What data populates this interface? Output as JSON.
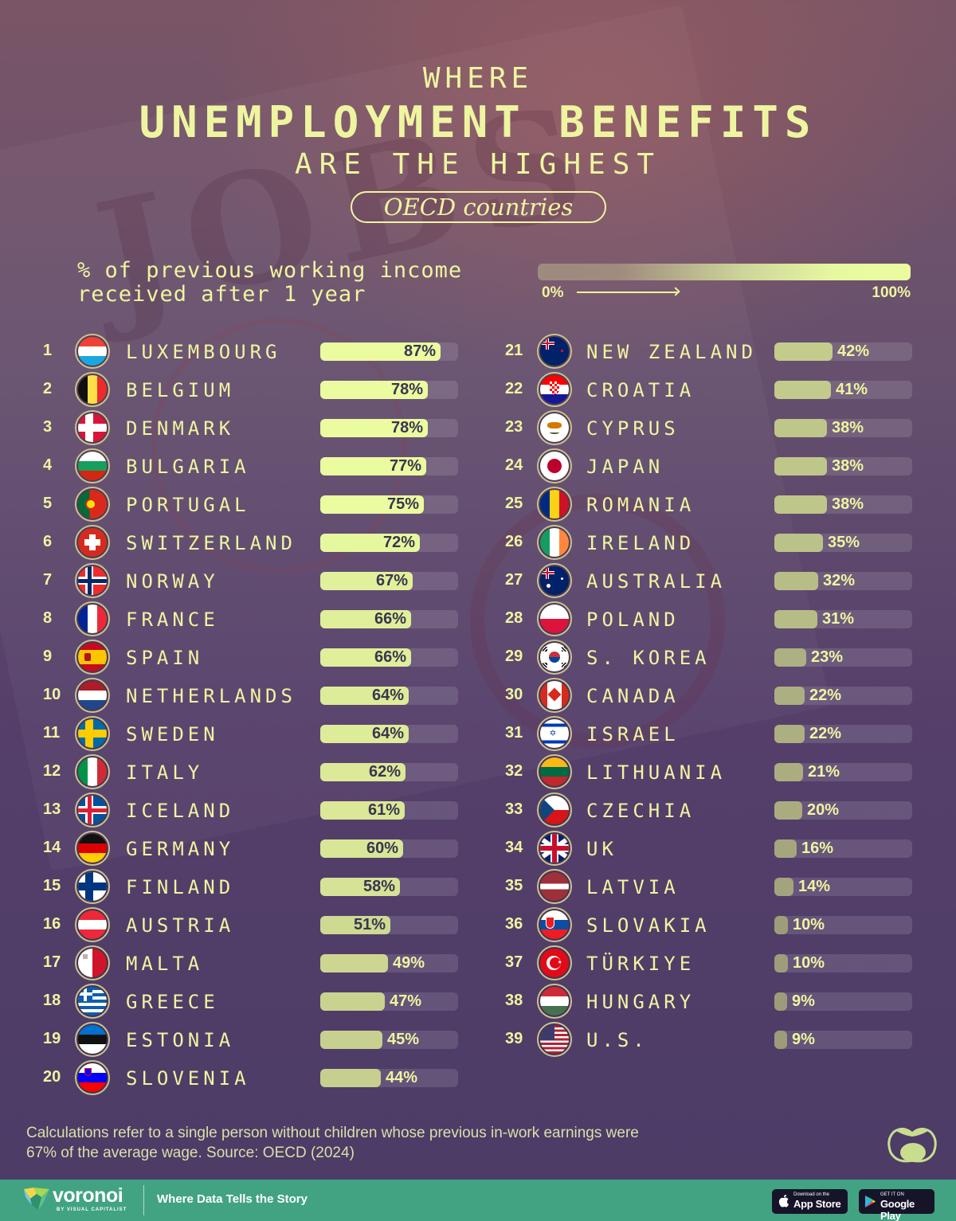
{
  "header": {
    "line1": "WHERE",
    "line2": "UNEMPLOYMENT BENEFITS",
    "line3": "ARE THE HIGHEST",
    "pill": "OECD countries"
  },
  "legend": {
    "line1": "% of previous working income",
    "line2": "received after 1 year",
    "min_label": "0%",
    "max_label": "100%"
  },
  "colors": {
    "text_accent": "#eef5a0",
    "bar_high": "#eafc9f",
    "bar_low": "#9f9a7c",
    "value_dark": "#3a3550",
    "brand_green": "#41a381"
  },
  "chart_data": {
    "type": "bar",
    "title": "Where Unemployment Benefits Are the Highest — OECD countries",
    "ylabel": "% of previous working income received after 1 year",
    "ylim": [
      0,
      100
    ],
    "categories": [
      "Luxembourg",
      "Belgium",
      "Denmark",
      "Bulgaria",
      "Portugal",
      "Switzerland",
      "Norway",
      "France",
      "Spain",
      "Netherlands",
      "Sweden",
      "Italy",
      "Iceland",
      "Germany",
      "Finland",
      "Austria",
      "Malta",
      "Greece",
      "Estonia",
      "Slovenia",
      "New Zealand",
      "Croatia",
      "Cyprus",
      "Japan",
      "Romania",
      "Ireland",
      "Australia",
      "Poland",
      "S. Korea",
      "Canada",
      "Israel",
      "Lithuania",
      "Czechia",
      "UK",
      "Latvia",
      "Slovakia",
      "Türkiye",
      "Hungary",
      "U.S."
    ],
    "values": [
      87,
      78,
      78,
      77,
      75,
      72,
      67,
      66,
      66,
      64,
      64,
      62,
      61,
      60,
      58,
      51,
      49,
      47,
      45,
      44,
      42,
      41,
      38,
      38,
      38,
      35,
      32,
      31,
      23,
      22,
      22,
      21,
      20,
      16,
      14,
      10,
      10,
      9,
      9
    ]
  },
  "rows": [
    {
      "rank": "1",
      "country": "LUXEMBOURG",
      "value": 87,
      "label": "87%",
      "flag": "lu"
    },
    {
      "rank": "2",
      "country": "BELGIUM",
      "value": 78,
      "label": "78%",
      "flag": "be"
    },
    {
      "rank": "3",
      "country": "DENMARK",
      "value": 78,
      "label": "78%",
      "flag": "dk"
    },
    {
      "rank": "4",
      "country": "BULGARIA",
      "value": 77,
      "label": "77%",
      "flag": "bg"
    },
    {
      "rank": "5",
      "country": "PORTUGAL",
      "value": 75,
      "label": "75%",
      "flag": "pt"
    },
    {
      "rank": "6",
      "country": "SWITZERLAND",
      "value": 72,
      "label": "72%",
      "flag": "ch"
    },
    {
      "rank": "7",
      "country": "NORWAY",
      "value": 67,
      "label": "67%",
      "flag": "no"
    },
    {
      "rank": "8",
      "country": "FRANCE",
      "value": 66,
      "label": "66%",
      "flag": "fr"
    },
    {
      "rank": "9",
      "country": "SPAIN",
      "value": 66,
      "label": "66%",
      "flag": "es"
    },
    {
      "rank": "10",
      "country": "NETHERLANDS",
      "value": 64,
      "label": "64%",
      "flag": "nl"
    },
    {
      "rank": "11",
      "country": "SWEDEN",
      "value": 64,
      "label": "64%",
      "flag": "se"
    },
    {
      "rank": "12",
      "country": "ITALY",
      "value": 62,
      "label": "62%",
      "flag": "it"
    },
    {
      "rank": "13",
      "country": "ICELAND",
      "value": 61,
      "label": "61%",
      "flag": "is"
    },
    {
      "rank": "14",
      "country": "GERMANY",
      "value": 60,
      "label": "60%",
      "flag": "de"
    },
    {
      "rank": "15",
      "country": "FINLAND",
      "value": 58,
      "label": "58%",
      "flag": "fi"
    },
    {
      "rank": "16",
      "country": "AUSTRIA",
      "value": 51,
      "label": "51%",
      "flag": "at"
    },
    {
      "rank": "17",
      "country": "MALTA",
      "value": 49,
      "label": "49%",
      "flag": "mt"
    },
    {
      "rank": "18",
      "country": "GREECE",
      "value": 47,
      "label": "47%",
      "flag": "gr"
    },
    {
      "rank": "19",
      "country": "ESTONIA",
      "value": 45,
      "label": "45%",
      "flag": "ee"
    },
    {
      "rank": "20",
      "country": "SLOVENIA",
      "value": 44,
      "label": "44%",
      "flag": "si"
    },
    {
      "rank": "21",
      "country": "NEW ZEALAND",
      "value": 42,
      "label": "42%",
      "flag": "nz"
    },
    {
      "rank": "22",
      "country": "CROATIA",
      "value": 41,
      "label": "41%",
      "flag": "hr"
    },
    {
      "rank": "23",
      "country": "CYPRUS",
      "value": 38,
      "label": "38%",
      "flag": "cy"
    },
    {
      "rank": "24",
      "country": "JAPAN",
      "value": 38,
      "label": "38%",
      "flag": "jp"
    },
    {
      "rank": "25",
      "country": "ROMANIA",
      "value": 38,
      "label": "38%",
      "flag": "ro"
    },
    {
      "rank": "26",
      "country": "IRELAND",
      "value": 35,
      "label": "35%",
      "flag": "ie"
    },
    {
      "rank": "27",
      "country": "AUSTRALIA",
      "value": 32,
      "label": "32%",
      "flag": "au"
    },
    {
      "rank": "28",
      "country": "POLAND",
      "value": 31,
      "label": "31%",
      "flag": "pl"
    },
    {
      "rank": "29",
      "country": "S. KOREA",
      "value": 23,
      "label": "23%",
      "flag": "kr"
    },
    {
      "rank": "30",
      "country": "CANADA",
      "value": 22,
      "label": "22%",
      "flag": "ca"
    },
    {
      "rank": "31",
      "country": "ISRAEL",
      "value": 22,
      "label": "22%",
      "flag": "il"
    },
    {
      "rank": "32",
      "country": "LITHUANIA",
      "value": 21,
      "label": "21%",
      "flag": "lt"
    },
    {
      "rank": "33",
      "country": "CZECHIA",
      "value": 20,
      "label": "20%",
      "flag": "cz"
    },
    {
      "rank": "34",
      "country": "UK",
      "value": 16,
      "label": "16%",
      "flag": "gb"
    },
    {
      "rank": "35",
      "country": "LATVIA",
      "value": 14,
      "label": "14%",
      "flag": "lv"
    },
    {
      "rank": "36",
      "country": "SLOVAKIA",
      "value": 10,
      "label": "10%",
      "flag": "sk"
    },
    {
      "rank": "37",
      "country": "TÜRKIYE",
      "value": 10,
      "label": "10%",
      "flag": "tr"
    },
    {
      "rank": "38",
      "country": "HUNGARY",
      "value": 9,
      "label": "9%",
      "flag": "hu"
    },
    {
      "rank": "39",
      "country": "U.S.",
      "value": 9,
      "label": "9%",
      "flag": "us"
    }
  ],
  "footer": {
    "note": "Calculations refer to a single person without children whose previous in-work earnings were 67% of the average wage. Source: OECD (2024)",
    "brand": "voronoi",
    "brand_by": "BY VISUAL CAPITALIST",
    "tagline": "Where Data Tells the Story",
    "app_store_small": "Download on the",
    "app_store_big": "App Store",
    "google_small": "GET IT ON",
    "google_big": "Google Play"
  }
}
